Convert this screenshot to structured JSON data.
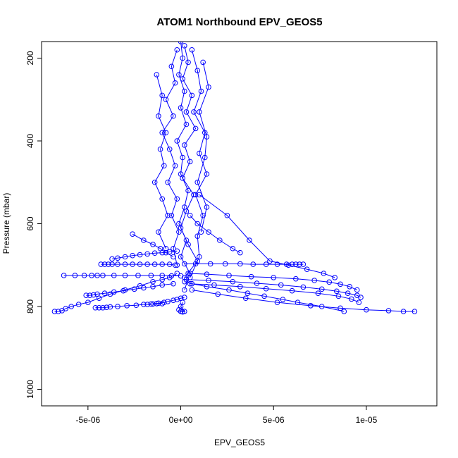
{
  "chart_data": {
    "type": "scatter",
    "title": "ATOM1 Northbound EPV_GEOS5",
    "xlabel": "EPV_GEOS5",
    "ylabel": "Pressure (mbar)",
    "xlim": [
      -7.5e-06,
      1.38e-05
    ],
    "ylim": [
      1040,
      160
    ],
    "y_reversed": true,
    "x_ticks": [
      {
        "value": -5e-06,
        "label": "-5e-06"
      },
      {
        "value": 0,
        "label": "0e+00"
      },
      {
        "value": 5e-06,
        "label": "5e-06"
      },
      {
        "value": 1e-05,
        "label": "1e-05"
      }
    ],
    "y_ticks": [
      {
        "value": 200,
        "label": "200"
      },
      {
        "value": 400,
        "label": "400"
      },
      {
        "value": 600,
        "label": "600"
      },
      {
        "value": 800,
        "label": "800"
      },
      {
        "value": 1000,
        "label": "1000"
      }
    ],
    "grid": false,
    "marker": "open-circle",
    "series_color": "#0000ff",
    "series": [
      {
        "x": [
          0.0,
          1e-07,
          -1e-07,
          2e-07,
          0.0,
          3e-07,
          -2e-07,
          1e-07,
          0.0,
          4e-07,
          2e-07,
          -1e-07,
          3e-07,
          0.0,
          5e-07,
          2e-07
        ],
        "y": [
          160,
          200,
          240,
          280,
          320,
          360,
          400,
          440,
          480,
          520,
          560,
          600,
          640,
          680,
          720,
          760
        ]
      },
      {
        "x": [
          2e-07,
          4e-07,
          1e-07,
          6e-07,
          3e-07,
          8e-07,
          2e-07,
          5e-07,
          1e-07,
          7e-07,
          3e-07,
          0.0,
          4e-07,
          9e-07,
          2e-07
        ],
        "y": [
          170,
          210,
          250,
          290,
          330,
          370,
          410,
          450,
          490,
          530,
          570,
          610,
          650,
          690,
          730
        ]
      },
      {
        "x": [
          -2e-07,
          -5e-07,
          -3e-07,
          -8e-07,
          -4e-07,
          -1e-06,
          -6e-07,
          -3e-07,
          -7e-07,
          -2e-07,
          -5e-07,
          -1e-07,
          -4e-07,
          -2e-07
        ],
        "y": [
          180,
          220,
          260,
          300,
          340,
          380,
          420,
          460,
          500,
          540,
          580,
          620,
          660,
          700
        ]
      },
      {
        "x": [
          6e-07,
          9e-07,
          1.1e-06,
          7e-07,
          1.3e-06,
          1e-06,
          1.4e-06,
          8e-07,
          1.2e-06,
          9e-07,
          1e-06,
          5e-07
        ],
        "y": [
          180,
          230,
          280,
          330,
          380,
          430,
          480,
          530,
          580,
          630,
          680,
          730
        ]
      },
      {
        "x": [
          -1.3e-06,
          -1e-06,
          -1.2e-06,
          -8e-07,
          -1.1e-06,
          -9e-07,
          -1.4e-06,
          -1e-06,
          -7e-07,
          -1.2e-06,
          -8e-07
        ],
        "y": [
          240,
          290,
          340,
          380,
          420,
          460,
          500,
          540,
          580,
          620,
          660
        ]
      },
      {
        "x": [
          1.2e-06,
          1.5e-06,
          1e-06,
          1.4e-06,
          1.3e-06,
          9e-07,
          1.4e-06,
          1.1e-06
        ],
        "y": [
          210,
          270,
          330,
          390,
          440,
          500,
          560,
          620
        ]
      },
      {
        "x": [
          -6.8e-06,
          -6.6e-06,
          -6.4e-06,
          -6.2e-06,
          -5.9e-06,
          -5.5e-06,
          -5e-06,
          -4.4e-06,
          -3.8e-06,
          -3e-06,
          -2.2e-06,
          -1.5e-06,
          -1e-06,
          -6e-07,
          -2e-07
        ],
        "y": [
          812,
          812,
          810,
          805,
          800,
          795,
          790,
          780,
          770,
          760,
          750,
          740,
          735,
          730,
          720
        ]
      },
      {
        "x": [
          -6.3e-06,
          -5.7e-06,
          -5.2e-06,
          -4.8e-06,
          -4.5e-06,
          -4.2e-06,
          -3.6e-06,
          -3e-06,
          -2.3e-06,
          -1.6e-06,
          -1e-06,
          -5e-07,
          0.0
        ],
        "y": [
          725,
          725,
          725,
          725,
          725,
          725,
          725,
          725,
          725,
          725,
          725,
          726,
          726
        ]
      },
      {
        "x": [
          -4.6e-06,
          -4.4e-06,
          -4.2e-06,
          -4e-06,
          -3.8e-06,
          -3.4e-06,
          -2.9e-06,
          -2.4e-06,
          -2e-06,
          -1.6e-06,
          -1.3e-06,
          -1e-06
        ],
        "y": [
          803,
          803,
          803,
          802,
          801,
          800,
          798,
          797,
          795,
          794,
          793,
          793
        ]
      },
      {
        "x": [
          -4.3e-06,
          -4.1e-06,
          -3.9e-06,
          -3.7e-06,
          -3.4e-06,
          -3e-06,
          -2.6e-06,
          -2.2e-06,
          -1.8e-06,
          -1.4e-06,
          -1e-06,
          -6e-07,
          -3e-07
        ],
        "y": [
          698,
          698,
          698,
          698,
          698,
          698,
          698,
          698,
          698,
          698,
          698,
          698,
          700
        ]
      },
      {
        "x": [
          -5.1e-06,
          -4.9e-06,
          -4.7e-06,
          -4.5e-06,
          -4.1e-06,
          -3.6e-06,
          -3.1e-06,
          -2.5e-06,
          -2e-06,
          -1.5e-06,
          -1e-06,
          -4e-07
        ],
        "y": [
          773,
          773,
          772,
          770,
          768,
          765,
          762,
          758,
          755,
          752,
          748,
          745
        ]
      },
      {
        "x": [
          -3.7e-06,
          -3.4e-06,
          -3e-06,
          -2.6e-06,
          -2.2e-06,
          -1.8e-06,
          -1.4e-06,
          -1e-06,
          -6e-07,
          -2e-07
        ],
        "y": [
          685,
          683,
          680,
          677,
          675,
          673,
          671,
          670,
          668,
          666
        ]
      },
      {
        "x": [
          -2.6e-06,
          -2e-06,
          -1.5e-06,
          -1.1e-06,
          -8e-07,
          -4e-07
        ],
        "y": [
          625,
          640,
          650,
          660,
          670,
          680
        ]
      },
      {
        "x": [
          2e-07,
          8e-07,
          1.6e-06,
          2.4e-06,
          3.2e-06,
          3.9e-06,
          4.6e-06,
          5.2e-06,
          5.7e-06,
          6e-06,
          6.2e-06,
          6.4e-06,
          6.6e-06
        ],
        "y": [
          697,
          697,
          697,
          697,
          697,
          698,
          698,
          698,
          698,
          698,
          698,
          698,
          698
        ]
      },
      {
        "x": [
          4e-07,
          1.4e-06,
          2.6e-06,
          3.8e-06,
          5e-06,
          6.2e-06,
          7.2e-06,
          8e-06,
          8.6e-06,
          9.1e-06,
          9.5e-06
        ],
        "y": [
          720,
          722,
          725,
          728,
          730,
          733,
          737,
          741,
          746,
          752,
          760
        ]
      },
      {
        "x": [
          6e-07,
          2e-06,
          3.5e-06,
          5.2e-06,
          7e-06,
          8.6e-06,
          1e-05,
          1.12e-05,
          1.2e-05,
          1.26e-05
        ],
        "y": [
          760,
          770,
          780,
          790,
          798,
          804,
          808,
          810,
          812,
          812
        ]
      },
      {
        "x": [
          3e-07,
          1.5e-06,
          2.8e-06,
          4.1e-06,
          5.4e-06,
          6.6e-06,
          7.6e-06,
          8.4e-06,
          9e-06,
          9.5e-06,
          9.7e-06
        ],
        "y": [
          735,
          737,
          740,
          744,
          748,
          753,
          758,
          763,
          768,
          773,
          778
        ]
      },
      {
        "x": [
          5e-07,
          1.8e-06,
          3.2e-06,
          4.6e-06,
          6e-06,
          7.4e-06,
          8.5e-06,
          9.2e-06,
          9.6e-06
        ],
        "y": [
          745,
          748,
          752,
          757,
          762,
          768,
          775,
          782,
          790
        ]
      },
      {
        "x": [
          1e-06,
          2.5e-06,
          3.7e-06,
          4.8e-06,
          5.8e-06,
          6.8e-06,
          7.7e-06,
          8.3e-06
        ],
        "y": [
          530,
          580,
          640,
          690,
          700,
          710,
          720,
          730
        ]
      },
      {
        "x": [
          2e-07,
          6e-07,
          1.4e-06,
          2.6e-06,
          3.6e-06,
          4.5e-06,
          5.5e-06,
          6.3e-06,
          7.6e-06,
          8.8e-06
        ],
        "y": [
          740,
          745,
          752,
          760,
          768,
          775,
          783,
          790,
          800,
          812
        ]
      },
      {
        "x": [
          -1.8e-06,
          -1.5e-06,
          -1.2e-06,
          -9e-07,
          -7e-07,
          -4e-07,
          -2e-07,
          0.0,
          2e-07
        ],
        "y": [
          795,
          794,
          792,
          790,
          788,
          785,
          783,
          780,
          778
        ]
      },
      {
        "x": [
          5e-07,
          9e-07,
          1.5e-06,
          2.1e-06,
          2.8e-06,
          3.2e-06
        ],
        "y": [
          580,
          600,
          620,
          640,
          660,
          670
        ]
      },
      {
        "x": [
          -1e-07,
          0.0,
          1e-07,
          2e-07,
          0.0,
          1e-07
        ],
        "y": [
          808,
          812,
          813,
          812,
          800,
          790
        ]
      }
    ]
  }
}
